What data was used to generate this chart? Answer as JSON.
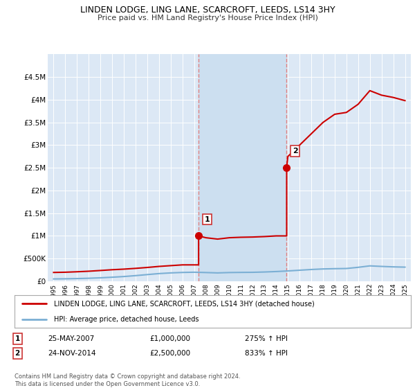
{
  "title": "LINDEN LODGE, LING LANE, SCARCROFT, LEEDS, LS14 3HY",
  "subtitle": "Price paid vs. HM Land Registry's House Price Index (HPI)",
  "background_color": "#ffffff",
  "plot_bg_color": "#dce8f5",
  "ylim": [
    0,
    5000000
  ],
  "yticks": [
    0,
    500000,
    1000000,
    1500000,
    2000000,
    2500000,
    3000000,
    3500000,
    4000000,
    4500000
  ],
  "ytick_labels": [
    "£0",
    "£500K",
    "£1M",
    "£1.5M",
    "£2M",
    "£2.5M",
    "£3M",
    "£3.5M",
    "£4M",
    "£4.5M"
  ],
  "hpi_years": [
    1995,
    1996,
    1997,
    1998,
    1999,
    2000,
    2001,
    2002,
    2003,
    2004,
    2005,
    2006,
    2007,
    2008,
    2009,
    2010,
    2011,
    2012,
    2013,
    2014,
    2015,
    2016,
    2017,
    2018,
    2019,
    2020,
    2021,
    2022,
    2023,
    2024,
    2025
  ],
  "hpi_values": [
    52000,
    55000,
    60000,
    67000,
    77000,
    90000,
    105000,
    125000,
    148000,
    170000,
    185000,
    195000,
    200000,
    193000,
    185000,
    193000,
    196000,
    198000,
    205000,
    215000,
    228000,
    244000,
    260000,
    272000,
    278000,
    282000,
    308000,
    340000,
    328000,
    318000,
    312000
  ],
  "property_years": [
    1995,
    1996,
    1997,
    1998,
    1999,
    2000,
    2001,
    2002,
    2003,
    2004,
    2005,
    2006,
    2007.38,
    2007.38,
    2008,
    2009,
    2010,
    2011,
    2012,
    2013,
    2014,
    2014.9,
    2014.9,
    2015,
    2016,
    2017,
    2018,
    2019,
    2020,
    2021,
    2022,
    2023,
    2024,
    2025
  ],
  "property_values": [
    195000,
    200000,
    210000,
    222000,
    238000,
    255000,
    268000,
    285000,
    305000,
    328000,
    345000,
    362000,
    362000,
    1000000,
    960000,
    930000,
    960000,
    970000,
    975000,
    985000,
    1000000,
    1000000,
    2500000,
    2750000,
    3000000,
    3250000,
    3500000,
    3680000,
    3720000,
    3900000,
    4200000,
    4100000,
    4050000,
    3980000
  ],
  "sale1_year": 2007.38,
  "sale1_value": 1000000,
  "sale1_label": "1",
  "sale1_date": "25-MAY-2007",
  "sale1_price": "£1,000,000",
  "sale1_hpi": "275% ↑ HPI",
  "sale2_year": 2014.9,
  "sale2_value": 2500000,
  "sale2_label": "2",
  "sale2_date": "24-NOV-2014",
  "sale2_price": "£2,500,000",
  "sale2_hpi": "833% ↑ HPI",
  "hpi_color": "#7bafd4",
  "property_color": "#cc0000",
  "sale_marker_color": "#cc0000",
  "legend_property": "LINDEN LODGE, LING LANE, SCARCROFT, LEEDS, LS14 3HY (detached house)",
  "legend_hpi": "HPI: Average price, detached house, Leeds",
  "footnote": "Contains HM Land Registry data © Crown copyright and database right 2024.\nThis data is licensed under the Open Government Licence v3.0.",
  "xtick_years": [
    1995,
    1996,
    1997,
    1998,
    1999,
    2000,
    2001,
    2002,
    2003,
    2004,
    2005,
    2006,
    2007,
    2008,
    2009,
    2010,
    2011,
    2012,
    2013,
    2014,
    2015,
    2016,
    2017,
    2018,
    2019,
    2020,
    2021,
    2022,
    2023,
    2024,
    2025
  ],
  "vline_color": "#e08080",
  "shade_color": "#ccdff0"
}
